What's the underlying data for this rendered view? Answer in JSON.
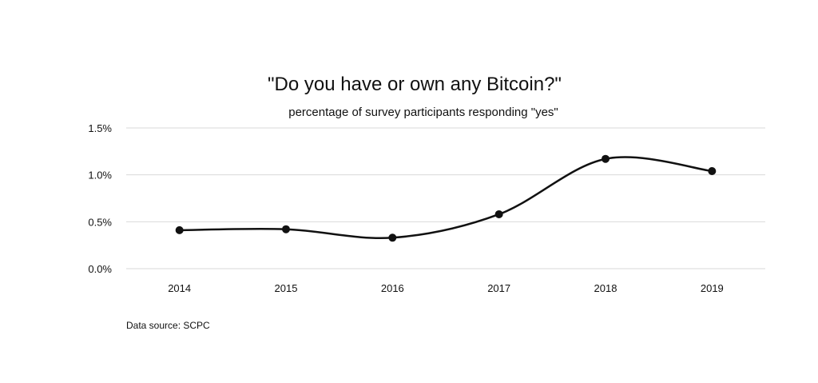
{
  "chart_data": {
    "type": "line",
    "title": "\"Do you have or own any Bitcoin?\"",
    "subtitle": "percentage of survey participants responding \"yes\"",
    "x": [
      "2014",
      "2015",
      "2016",
      "2017",
      "2018",
      "2019"
    ],
    "series": [
      {
        "values": [
          0.41,
          0.42,
          0.33,
          0.58,
          1.17,
          1.04
        ]
      }
    ],
    "ylim": [
      0,
      1.5
    ],
    "yticks": [
      0,
      0.5,
      1.0,
      1.5
    ],
    "ytick_labels": [
      "0.0%",
      "0.5%",
      "1.0%",
      "1.5%"
    ],
    "grid": true,
    "smooth": true,
    "marker": "circle",
    "line_color": "#111111",
    "grid_color": "#d9d9d9",
    "source_note": "Data source: SCPC"
  }
}
